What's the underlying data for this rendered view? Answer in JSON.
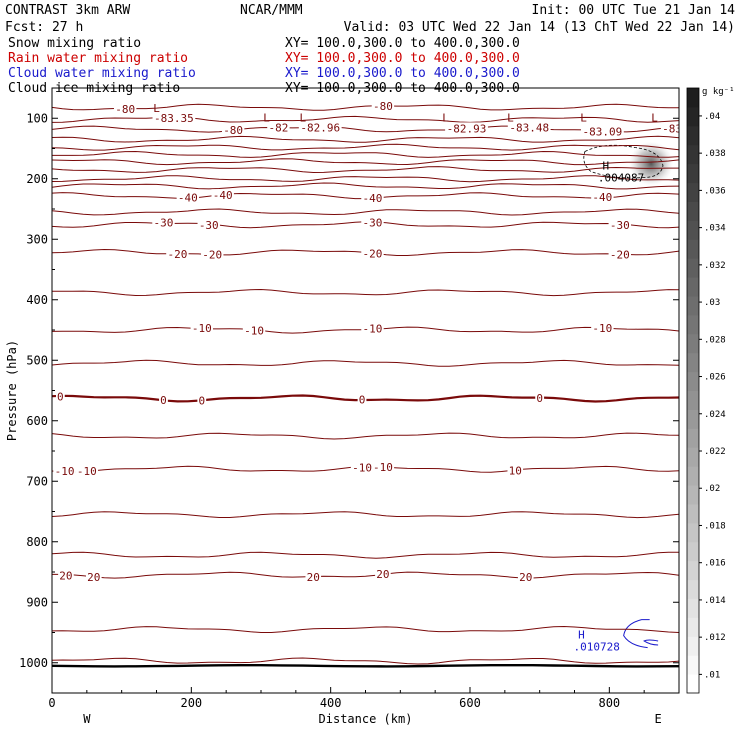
{
  "header": {
    "left1": "CONTRAST  3km ARW",
    "center1": "NCAR/MMM",
    "right1": "Init: 00 UTC Tue 21 Jan 14",
    "left2": "Fcst:   27 h",
    "right2": "Valid: 03 UTC Wed 22 Jan 14 (13 ChT Wed 22 Jan 14)"
  },
  "fields": [
    {
      "name": "Snow mixing ratio",
      "xy": "XY= 100.0,300.0 to 400.0,300.0",
      "color": "#000000"
    },
    {
      "name": "Rain water mixing ratio",
      "xy": "XY= 100.0,300.0 to 400.0,300.0",
      "color": "#cc0000"
    },
    {
      "name": "Cloud water mixing ratio",
      "xy": "XY= 100.0,300.0 to 400.0,300.0",
      "color": "#1a1acc"
    },
    {
      "name": "Cloud ice mixing ratio",
      "xy": "XY= 100.0,300.0 to 400.0,300.0",
      "color": "#000000"
    }
  ],
  "chart_data": {
    "type": "contour",
    "xlabel": "Distance (km)",
    "ylabel": "Pressure (hPa)",
    "xlim": [
      0,
      900
    ],
    "ylim": [
      1050,
      50
    ],
    "xticks": [
      0,
      200,
      400,
      600,
      800
    ],
    "yticks": [
      100,
      200,
      300,
      400,
      500,
      600,
      700,
      800,
      900,
      1000
    ],
    "x_end_labels": {
      "left": "W",
      "right": "E"
    },
    "contour_color": "#7a0a0a",
    "contours": [
      {
        "p": 82,
        "labels": [
          {
            "x": 105,
            "t": "-80"
          },
          {
            "x": 475,
            "t": "-80"
          }
        ]
      },
      {
        "p": 102,
        "labels": [
          {
            "x": 175,
            "t": "-83.35"
          }
        ]
      },
      {
        "p": 118,
        "labels": [
          {
            "x": 260,
            "t": "-80"
          },
          {
            "x": 325,
            "t": "-82"
          },
          {
            "x": 385,
            "t": "-82.96"
          },
          {
            "x": 595,
            "t": "-82.93"
          },
          {
            "x": 685,
            "t": "-83.48"
          },
          {
            "x": 790,
            "t": "-83.09"
          },
          {
            "x": 890,
            "t": "-83"
          }
        ]
      },
      {
        "p": 135,
        "labels": []
      },
      {
        "p": 148,
        "labels": []
      },
      {
        "p": 160,
        "labels": []
      },
      {
        "p": 172,
        "labels": []
      },
      {
        "p": 185,
        "labels": []
      },
      {
        "p": 200,
        "labels": []
      },
      {
        "p": 212,
        "labels": []
      },
      {
        "p": 228,
        "labels": [
          {
            "x": 195,
            "t": "-40"
          },
          {
            "x": 245,
            "t": "-40"
          },
          {
            "x": 460,
            "t": "-40"
          },
          {
            "x": 790,
            "t": "-40"
          }
        ]
      },
      {
        "p": 255,
        "labels": []
      },
      {
        "p": 276,
        "labels": [
          {
            "x": 160,
            "t": "-30"
          },
          {
            "x": 225,
            "t": "-30"
          },
          {
            "x": 460,
            "t": "-30"
          },
          {
            "x": 815,
            "t": "-30"
          }
        ]
      },
      {
        "p": 322,
        "labels": [
          {
            "x": 180,
            "t": "-20"
          },
          {
            "x": 230,
            "t": "-20"
          },
          {
            "x": 460,
            "t": "-20"
          },
          {
            "x": 815,
            "t": "-20"
          }
        ]
      },
      {
        "p": 388,
        "labels": []
      },
      {
        "p": 450,
        "labels": [
          {
            "x": 215,
            "t": "-10"
          },
          {
            "x": 290,
            "t": "-10"
          },
          {
            "x": 460,
            "t": "-10"
          },
          {
            "x": 790,
            "t": "-10"
          }
        ]
      },
      {
        "p": 505,
        "labels": []
      },
      {
        "p": 563,
        "bold": true,
        "labels": [
          {
            "x": 12,
            "t": "0"
          },
          {
            "x": 160,
            "t": "0"
          },
          {
            "x": 215,
            "t": "0"
          },
          {
            "x": 445,
            "t": "0"
          },
          {
            "x": 700,
            "t": "0"
          }
        ]
      },
      {
        "p": 625,
        "labels": []
      },
      {
        "p": 680,
        "labels": [
          {
            "x": 18,
            "t": "-10"
          },
          {
            "x": 50,
            "t": "-10"
          },
          {
            "x": 445,
            "t": "-10"
          },
          {
            "x": 475,
            "t": "-10"
          },
          {
            "x": 665,
            "t": "10"
          }
        ]
      },
      {
        "p": 755,
        "labels": []
      },
      {
        "p": 822,
        "labels": []
      },
      {
        "p": 855,
        "labels": [
          {
            "x": 20,
            "t": "20"
          },
          {
            "x": 60,
            "t": "20"
          },
          {
            "x": 375,
            "t": "20"
          },
          {
            "x": 475,
            "t": "20"
          },
          {
            "x": 680,
            "t": "20"
          }
        ]
      },
      {
        "p": 945,
        "labels": []
      },
      {
        "p": 997,
        "labels": []
      }
    ],
    "extrema": [
      {
        "kind": "L",
        "x": 150,
        "p": 90
      },
      {
        "kind": "L",
        "x": 308,
        "p": 105
      },
      {
        "kind": "L",
        "x": 360,
        "p": 105
      },
      {
        "kind": "L",
        "x": 565,
        "p": 105
      },
      {
        "kind": "L",
        "x": 658,
        "p": 105
      },
      {
        "kind": "L",
        "x": 763,
        "p": 105
      },
      {
        "kind": "L",
        "x": 865,
        "p": 105
      },
      {
        "kind": "H",
        "x": 795,
        "p": 185,
        "value": ".004087",
        "color": "#000000"
      },
      {
        "kind": "H",
        "x": 760,
        "p": 960,
        "value": ".010728",
        "color": "#1a1acc"
      }
    ],
    "colorbar": {
      "unit": "g kg⁻¹",
      "ticks": [
        ".01",
        ".012",
        ".014",
        ".016",
        ".018",
        ".02",
        ".022",
        ".024",
        ".026",
        ".028",
        ".03",
        ".032",
        ".034",
        ".036",
        ".038",
        ".04"
      ],
      "range": [
        0.009,
        0.0415
      ]
    }
  }
}
